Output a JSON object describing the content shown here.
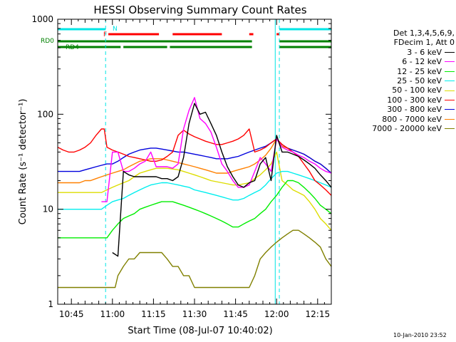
{
  "chart_data": {
    "type": "line",
    "title": "HESSI Observing Summary Count Rates",
    "xlabel": "Start Time (08-Jul-07 10:40:02)",
    "ylabel": "Count Rate (s⁻¹ detector⁻¹)",
    "ylog": true,
    "ylim": [
      1,
      1000
    ],
    "xlim_minutes": [
      0,
      100
    ],
    "y_ticks": [
      "1",
      "10",
      "100",
      "1000"
    ],
    "x_ticks": [
      {
        "label": "10:45",
        "min": 5
      },
      {
        "label": "11:00",
        "min": 20
      },
      {
        "label": "11:15",
        "min": 35
      },
      {
        "label": "11:30",
        "min": 50
      },
      {
        "label": "11:45",
        "min": 65
      },
      {
        "label": "12:00",
        "min": 80
      },
      {
        "label": "12:15",
        "min": 95
      }
    ],
    "legend_header": [
      "Det 1,3,4,5,6,9,",
      "FDecim 1, Att 0"
    ],
    "legend_placement": "right",
    "flags": [
      {
        "label": "N",
        "color": "#00e5e5",
        "segments": [
          [
            0,
            17.5
          ],
          [
            81,
            100
          ]
        ]
      },
      {
        "label": "F",
        "color": "#ff0000",
        "segments": [
          [
            18.5,
            37
          ],
          [
            42,
            60
          ],
          [
            70,
            71.5
          ],
          [
            80,
            81
          ]
        ]
      },
      {
        "label": "RD0",
        "color": "#008000",
        "segments": [
          [
            0,
            71
          ],
          [
            81,
            100
          ]
        ]
      },
      {
        "label": "RD4",
        "color": "#008000",
        "segments": [
          [
            0,
            23
          ],
          [
            24,
            40
          ],
          [
            41,
            71
          ],
          [
            81,
            100
          ]
        ]
      }
    ],
    "vlines_min": [
      17.5,
      79.5,
      81,
      100
    ],
    "series": [
      {
        "name": "3 - 6 keV",
        "color": "#000000",
        "x": [
          20,
          22,
          24,
          26,
          28,
          30,
          32,
          34,
          36,
          38,
          40,
          42,
          44,
          46,
          48,
          50,
          52,
          54,
          56,
          58,
          60,
          62,
          64,
          66,
          68,
          70,
          72,
          74,
          76,
          78,
          80,
          82,
          84,
          86,
          88,
          90,
          92,
          94,
          96,
          98,
          100
        ],
        "y": [
          3.5,
          3.2,
          25,
          23,
          22,
          22,
          22,
          22,
          22,
          21,
          21,
          20,
          22,
          35,
          80,
          130,
          100,
          105,
          80,
          60,
          40,
          28,
          22,
          18,
          17,
          19,
          20,
          30,
          35,
          20,
          60,
          40,
          40,
          38,
          36,
          33,
          30,
          27,
          23,
          20,
          17
        ]
      },
      {
        "name": "6 - 12 keV",
        "color": "#ff00ff",
        "x": [
          16,
          18,
          20,
          22,
          24,
          26,
          28,
          30,
          32,
          34,
          36,
          38,
          40,
          42,
          44,
          46,
          48,
          50,
          52,
          54,
          56,
          58,
          60,
          62,
          64,
          66,
          68,
          70,
          72,
          74,
          76,
          78,
          80,
          82,
          84,
          86,
          88,
          90,
          92,
          94,
          96,
          98,
          100
        ],
        "y": [
          12,
          12,
          40,
          40,
          25,
          25,
          27,
          30,
          32,
          40,
          28,
          28,
          28,
          27,
          30,
          70,
          110,
          150,
          90,
          80,
          65,
          45,
          30,
          25,
          20,
          17,
          17,
          18,
          25,
          35,
          30,
          25,
          55,
          45,
          42,
          40,
          37,
          35,
          32,
          30,
          27,
          25,
          24
        ]
      },
      {
        "name": "12 - 25 keV",
        "color": "#00ee00",
        "x": [
          0,
          2,
          4,
          6,
          8,
          10,
          12,
          14,
          16,
          18,
          20,
          22,
          24,
          26,
          28,
          30,
          32,
          34,
          36,
          38,
          40,
          42,
          44,
          46,
          48,
          50,
          52,
          54,
          56,
          58,
          60,
          62,
          64,
          66,
          68,
          70,
          72,
          74,
          76,
          78,
          80,
          82,
          84,
          86,
          88,
          90,
          92,
          94,
          96,
          98,
          100
        ],
        "y": [
          5,
          5,
          5,
          5,
          5,
          5,
          5,
          5,
          5,
          5,
          6,
          7,
          8,
          8.5,
          9,
          10,
          10.5,
          11,
          11.5,
          12,
          12,
          12,
          11.5,
          11,
          10.5,
          10,
          9.5,
          9,
          8.5,
          8,
          7.5,
          7,
          6.5,
          6.5,
          7,
          7.5,
          8,
          9,
          10,
          12,
          14,
          17,
          20,
          20,
          19,
          17,
          15,
          13,
          11,
          10,
          9
        ]
      },
      {
        "name": "25 - 50 keV",
        "color": "#00eeee",
        "x": [
          0,
          2,
          4,
          6,
          8,
          10,
          12,
          14,
          16,
          18,
          20,
          22,
          24,
          26,
          28,
          30,
          32,
          34,
          36,
          38,
          40,
          42,
          44,
          46,
          48,
          50,
          52,
          54,
          56,
          58,
          60,
          62,
          64,
          66,
          68,
          70,
          72,
          74,
          76,
          78,
          80,
          82,
          84,
          86,
          88,
          90,
          92,
          94,
          96,
          98,
          100
        ],
        "y": [
          10,
          10,
          10,
          10,
          10,
          10,
          10,
          10,
          10,
          11,
          12,
          12.5,
          13,
          14,
          15,
          16,
          17,
          18,
          18.5,
          19,
          19,
          18.5,
          18,
          17.5,
          17,
          16,
          15.5,
          15,
          14.5,
          14,
          13.5,
          13,
          12.5,
          12.5,
          13,
          14,
          15,
          16,
          18,
          21,
          24,
          25,
          25,
          24,
          23,
          22,
          21,
          20,
          19,
          18,
          17
        ]
      },
      {
        "name": "50 - 100 keV",
        "color": "#dddd00",
        "x": [
          0,
          2,
          4,
          6,
          8,
          10,
          12,
          14,
          16,
          18,
          20,
          22,
          24,
          26,
          28,
          30,
          32,
          34,
          36,
          38,
          40,
          42,
          44,
          46,
          48,
          50,
          52,
          54,
          56,
          58,
          60,
          62,
          64,
          66,
          68,
          70,
          72,
          74,
          76,
          78,
          80,
          82,
          84,
          86,
          88,
          90,
          92,
          94,
          96,
          98,
          100
        ],
        "y": [
          15,
          15,
          15,
          15,
          15,
          15,
          15,
          15,
          15,
          16,
          17,
          18,
          19,
          20,
          22,
          24,
          25,
          26,
          27,
          27,
          27,
          26.5,
          26,
          25,
          24,
          23,
          22,
          21,
          20,
          19.5,
          19,
          18.5,
          18,
          18,
          18.5,
          19,
          21,
          23,
          26,
          30,
          40,
          20,
          18,
          16,
          15,
          14,
          12,
          10,
          8,
          7,
          6
        ]
      },
      {
        "name": "100 - 300 keV",
        "color": "#ff0000",
        "x": [
          0,
          2,
          4,
          6,
          8,
          10,
          12,
          14,
          16,
          17,
          18,
          20,
          22,
          24,
          26,
          28,
          30,
          32,
          34,
          36,
          38,
          40,
          42,
          44,
          46,
          48,
          50,
          52,
          54,
          56,
          58,
          60,
          62,
          64,
          66,
          68,
          70,
          72,
          74,
          76,
          78,
          80,
          82,
          84,
          86,
          88,
          90,
          92,
          94,
          96,
          98,
          100
        ],
        "y": [
          45,
          42,
          40,
          40,
          42,
          45,
          50,
          60,
          70,
          70,
          45,
          42,
          40,
          38,
          36,
          35,
          34,
          33,
          32,
          32,
          33,
          36,
          40,
          60,
          68,
          62,
          58,
          55,
          52,
          50,
          48,
          48,
          50,
          52,
          55,
          60,
          70,
          40,
          42,
          45,
          50,
          55,
          48,
          44,
          40,
          36,
          30,
          25,
          20,
          18,
          16,
          14
        ]
      },
      {
        "name": "300 - 800 keV",
        "color": "#0000dd",
        "x": [
          0,
          2,
          4,
          6,
          8,
          10,
          12,
          14,
          16,
          18,
          20,
          22,
          24,
          26,
          28,
          30,
          32,
          34,
          36,
          38,
          40,
          42,
          44,
          46,
          48,
          50,
          52,
          54,
          56,
          58,
          60,
          62,
          64,
          66,
          68,
          70,
          72,
          74,
          76,
          78,
          80,
          82,
          84,
          86,
          88,
          90,
          92,
          94,
          96,
          98,
          100
        ],
        "y": [
          25,
          25,
          25,
          25,
          25,
          26,
          27,
          28,
          29,
          30,
          30,
          32,
          35,
          38,
          40,
          42,
          43,
          44,
          44,
          43,
          42,
          41,
          40,
          40,
          39,
          38,
          37,
          36,
          35,
          34,
          34,
          34,
          35,
          36,
          38,
          40,
          42,
          44,
          46,
          50,
          55,
          48,
          44,
          42,
          40,
          38,
          35,
          32,
          30,
          27,
          24
        ]
      },
      {
        "name": "800 - 7000 keV",
        "color": "#ff8000",
        "x": [
          0,
          2,
          4,
          6,
          8,
          10,
          12,
          14,
          16,
          18,
          20,
          22,
          24,
          26,
          28,
          30,
          32,
          34,
          36,
          38,
          40,
          42,
          44,
          46,
          48,
          50,
          52,
          54,
          56,
          58,
          60,
          62,
          64,
          66,
          68,
          70,
          72,
          74,
          76,
          78,
          80,
          82,
          84,
          86,
          88,
          90,
          92,
          94,
          96,
          98,
          100
        ],
        "y": [
          19,
          19,
          19,
          19,
          19,
          20,
          20,
          21,
          22,
          23,
          24,
          25,
          26,
          28,
          30,
          32,
          33,
          34,
          34,
          34,
          33,
          32,
          31,
          30,
          29,
          28,
          27,
          26,
          25,
          24,
          24,
          24,
          25,
          26,
          27,
          28,
          30,
          33,
          37,
          44,
          55,
          46,
          44,
          42,
          40,
          38,
          35,
          32,
          30,
          27,
          24
        ]
      },
      {
        "name": "7000 - 20000 keV",
        "color": "#808000",
        "x": [
          0,
          3,
          6,
          9,
          12,
          15,
          18,
          21,
          22,
          24,
          26,
          28,
          30,
          32,
          34,
          36,
          38,
          40,
          42,
          44,
          46,
          48,
          50,
          52,
          54,
          56,
          58,
          60,
          62,
          64,
          66,
          68,
          70,
          72,
          74,
          76,
          78,
          80,
          82,
          84,
          86,
          88,
          90,
          92,
          94,
          96,
          98,
          100
        ],
        "y": [
          1.5,
          1.5,
          1.5,
          1.5,
          1.5,
          1.5,
          1.5,
          1.5,
          2,
          2.5,
          3,
          3,
          3.5,
          3.5,
          3.5,
          3.5,
          3.5,
          3,
          2.5,
          2.5,
          2,
          2,
          1.5,
          1.5,
          1.5,
          1.5,
          1.5,
          1.5,
          1.5,
          1.5,
          1.5,
          1.5,
          1.5,
          2,
          3,
          3.5,
          4,
          4.5,
          5,
          5.5,
          6,
          6,
          5.5,
          5,
          4.5,
          4,
          3,
          2.5
        ]
      }
    ]
  },
  "timestamp": "10-Jan-2010 23:52"
}
